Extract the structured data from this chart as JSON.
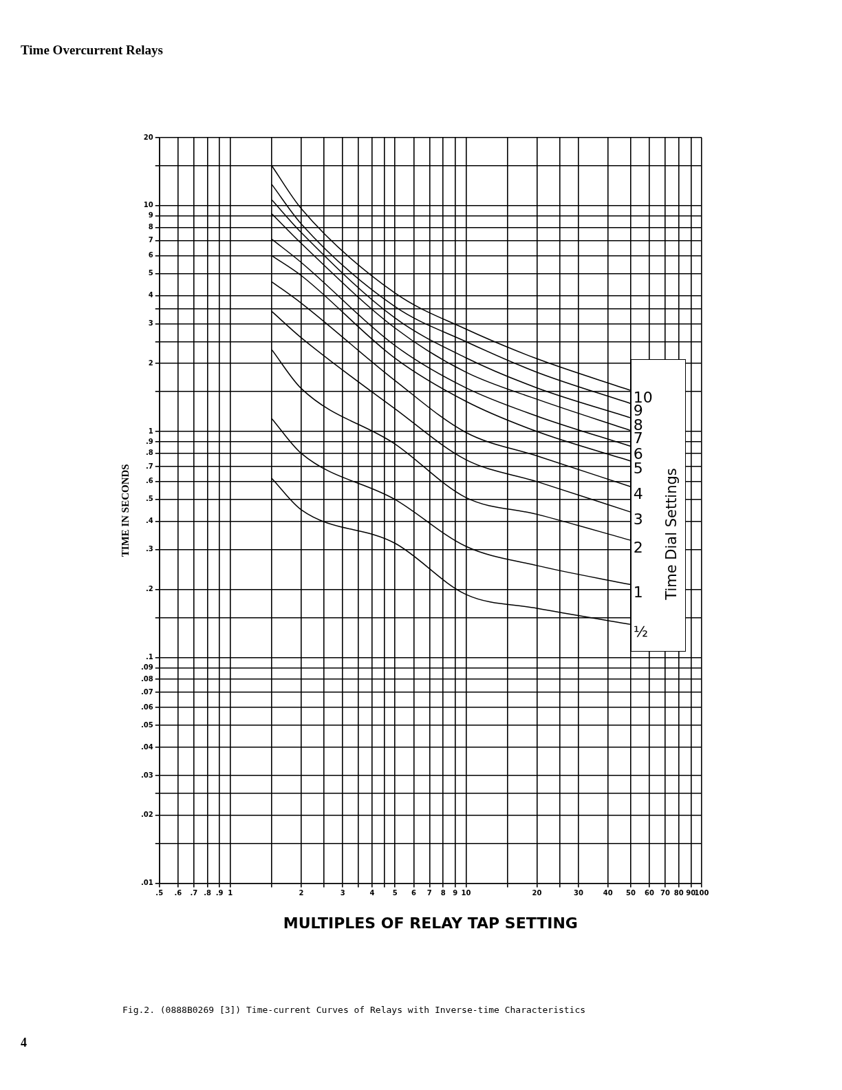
{
  "chart_data": {
    "type": "line",
    "title": "Time Overcurrent Relays",
    "xlabel": "MULTIPLES OF RELAY TAP SETTING",
    "ylabel": "TIME IN SECONDS",
    "legend_title": "Time Dial Settings",
    "annotations": [
      "Fig.2.   (0888B0269 [3])   Time-current Curves of Relays with Inverse-time Characteristics",
      "4"
    ],
    "log": "xy",
    "grid": true,
    "xlim": [
      0.5,
      100
    ],
    "ylim": [
      0.01,
      20
    ],
    "xticks": [
      {
        "value": 0.5,
        "label": ".5"
      },
      {
        "value": 0.6,
        "label": ".6"
      },
      {
        "value": 0.7,
        "label": ".7"
      },
      {
        "value": 0.8,
        "label": ".8"
      },
      {
        "value": 0.9,
        "label": ".9"
      },
      1,
      {
        "value": 1.5,
        "label": null
      },
      2,
      {
        "value": 2.5,
        "label": null
      },
      3,
      {
        "value": 3.5,
        "label": null
      },
      4,
      {
        "value": 4.5,
        "label": null
      },
      5,
      6,
      7,
      8,
      9,
      10,
      {
        "value": 15,
        "label": null
      },
      20,
      {
        "value": 25,
        "label": null
      },
      30,
      40,
      50,
      60,
      70,
      80,
      90,
      100
    ],
    "yticks": [
      {
        "value": 0.01,
        "label": ".01"
      },
      {
        "value": 0.015,
        "label": null
      },
      {
        "value": 0.02,
        "label": ".02"
      },
      {
        "value": 0.025,
        "label": null
      },
      {
        "value": 0.03,
        "label": ".03"
      },
      {
        "value": 0.04,
        "label": ".04"
      },
      {
        "value": 0.05,
        "label": ".05"
      },
      {
        "value": 0.06,
        "label": ".06"
      },
      {
        "value": 0.07,
        "label": ".07"
      },
      {
        "value": 0.08,
        "label": ".08"
      },
      {
        "value": 0.09,
        "label": ".09"
      },
      {
        "value": 0.1,
        "label": ".1"
      },
      {
        "value": 0.15,
        "label": null
      },
      {
        "value": 0.2,
        "label": ".2"
      },
      {
        "value": 0.3,
        "label": ".3"
      },
      {
        "value": 0.4,
        "label": ".4"
      },
      {
        "value": 0.5,
        "label": ".5"
      },
      {
        "value": 0.6,
        "label": ".6"
      },
      {
        "value": 0.7,
        "label": ".7"
      },
      {
        "value": 0.8,
        "label": ".8"
      },
      {
        "value": 0.9,
        "label": ".9"
      },
      1,
      {
        "value": 1.5,
        "label": null
      },
      2,
      {
        "value": 2.5,
        "label": null
      },
      3,
      {
        "value": 3.5,
        "label": null
      },
      4,
      5,
      6,
      7,
      8,
      9,
      10,
      {
        "value": 15,
        "label": null
      },
      20
    ],
    "x": [
      1.5,
      2,
      5,
      10,
      20,
      50
    ],
    "series": [
      {
        "name": "10",
        "color": "#000000",
        "values": [
          15,
          9.7,
          4.1,
          2.84,
          2.1,
          1.52
        ]
      },
      {
        "name": "9",
        "color": "#000000",
        "values": [
          12.4,
          8.3,
          3.57,
          2.5,
          1.83,
          1.33
        ]
      },
      {
        "name": "8",
        "color": "#000000",
        "values": [
          10.6,
          7.6,
          3.18,
          2.12,
          1.56,
          1.15
        ]
      },
      {
        "name": "7",
        "color": "#000000",
        "values": [
          9.2,
          6.8,
          2.87,
          1.83,
          1.39,
          1.01
        ]
      },
      {
        "name": "6",
        "color": "#000000",
        "values": [
          7.1,
          5.6,
          2.4,
          1.56,
          1.17,
          0.86
        ]
      },
      {
        "name": "5",
        "color": "#000000",
        "values": [
          6.0,
          4.9,
          2.11,
          1.36,
          1.0,
          0.74
        ]
      },
      {
        "name": "4",
        "color": "#000000",
        "values": [
          4.6,
          3.7,
          1.68,
          0.99,
          0.78,
          0.57
        ]
      },
      {
        "name": "3",
        "color": "#000000",
        "values": [
          3.4,
          2.6,
          1.26,
          0.75,
          0.6,
          0.44
        ]
      },
      {
        "name": "2",
        "color": "#000000",
        "values": [
          2.3,
          1.55,
          0.88,
          0.51,
          0.43,
          0.33
        ]
      },
      {
        "name": "1",
        "color": "#000000",
        "values": [
          1.14,
          0.8,
          0.5,
          0.31,
          0.255,
          0.21
        ]
      },
      {
        "name": "½",
        "color": "#000000",
        "values": [
          0.62,
          0.45,
          0.32,
          0.19,
          0.165,
          0.14
        ]
      }
    ]
  }
}
